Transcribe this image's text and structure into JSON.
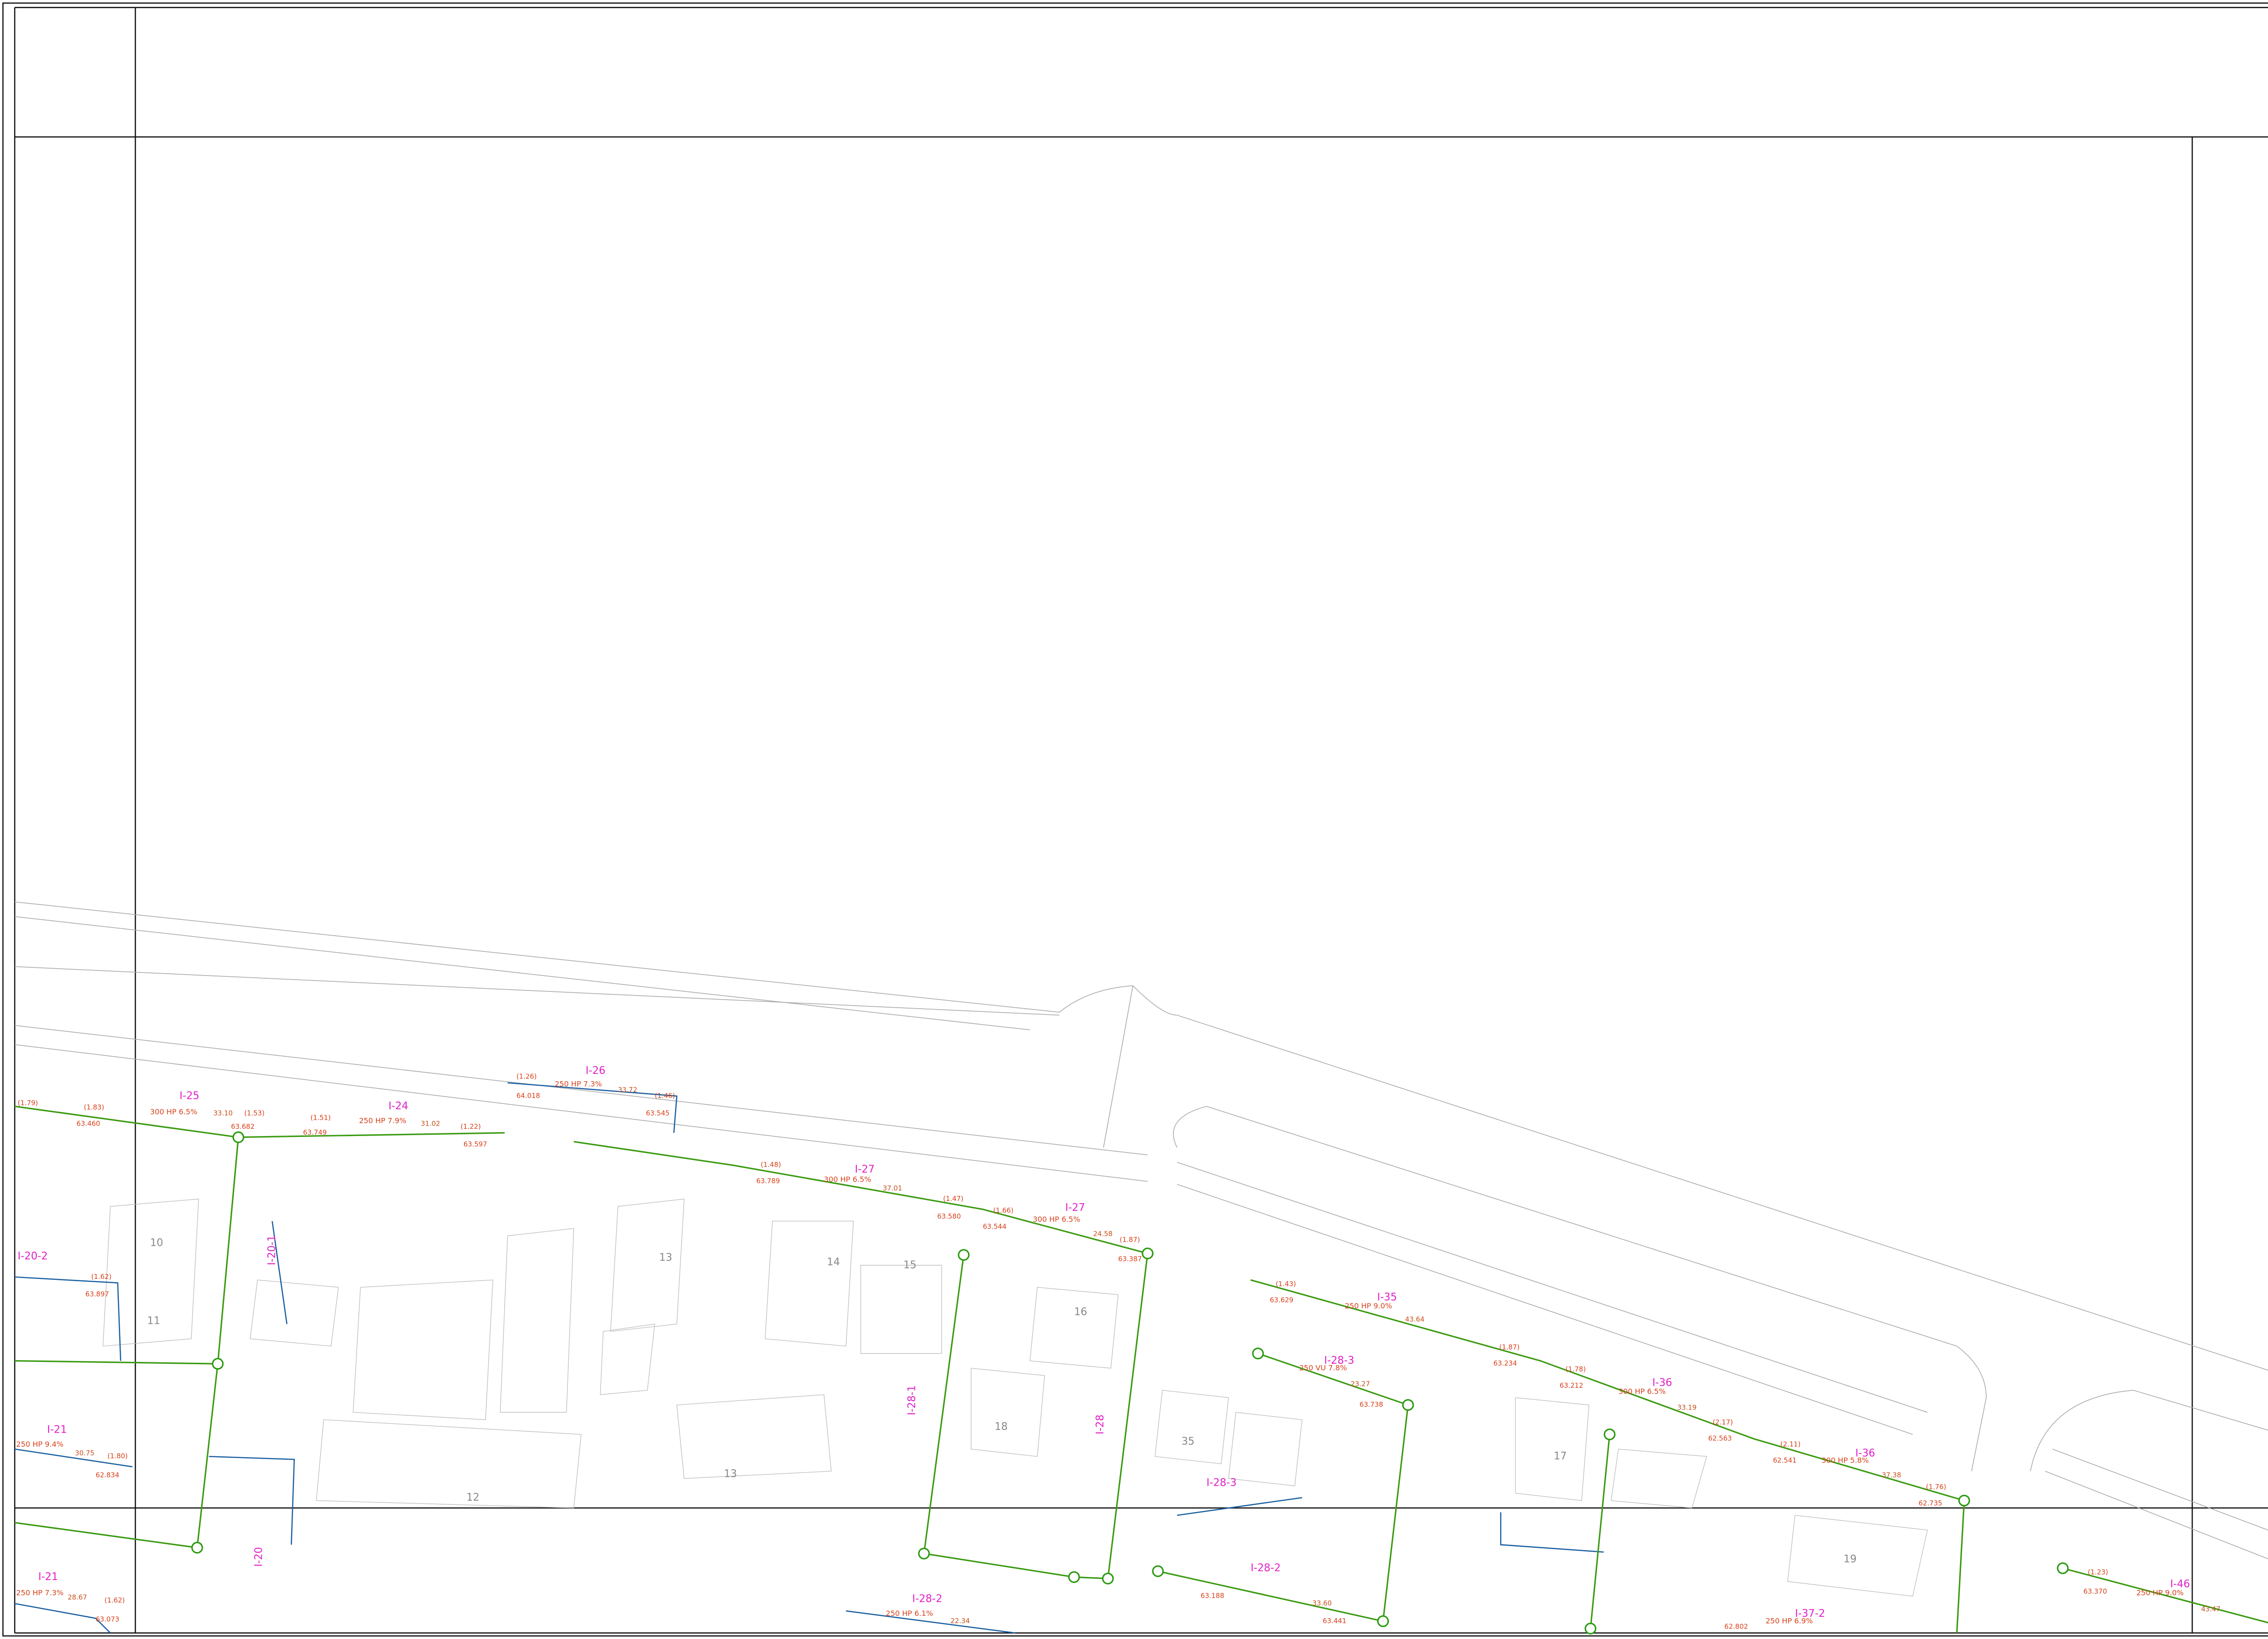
{
  "pipe_labels": [
    "I-26",
    "I-25",
    "I-24",
    "I-27",
    "I-27",
    "I-35",
    "I-28-3",
    "I-36",
    "I-36",
    "I-20-2",
    "I-20-1",
    "I-21",
    "I-21",
    "I-28",
    "I-28-1",
    "I-28-3",
    "I-28-2",
    "I-28-2",
    "I-20",
    "I-37-2",
    "I-46"
  ],
  "pipe_specs": [
    "300 HP 6.5%",
    "250 HP 7.9%",
    "250 HP 7.3%",
    "300 HP 6.5%",
    "300 HP 6.5%",
    "250 HP 9.0%",
    "300 HP 6.5%",
    "300 HP 5.8%",
    "250 VU 7.8%",
    "250 HP 9.4%",
    "250 HP 7.3%",
    "250 HP 6.1%",
    "250 HP 6.9%",
    "250 HP 9.0%"
  ],
  "elevations": [
    "63.460",
    "63.682",
    "63.749",
    "63.597",
    "64.018",
    "63.545",
    "63.789",
    "63.580",
    "63.544",
    "63.387",
    "63.629",
    "63.234",
    "63.212",
    "62.563",
    "62.541",
    "62.735",
    "63.370",
    "63.897",
    "62.834",
    "63.073",
    "63.738",
    "63.188",
    "63.441",
    "62.802"
  ],
  "depths": [
    "(1.79)",
    "(1.83)",
    "(1.53)",
    "(1.51)",
    "(1.22)",
    "(1.26)",
    "(1.46)",
    "(1.48)",
    "(1.47)",
    "(1.66)",
    "(1.87)",
    "(1.43)",
    "(1.87)",
    "(1.78)",
    "(2.17)",
    "(2.11)",
    "(1.76)",
    "(1.23)",
    "(1.62)",
    "(1.80)",
    "(1.62)"
  ],
  "lengths": [
    "33.10",
    "31.02",
    "33.72",
    "37.01",
    "24.58",
    "43.64",
    "33.19",
    "37.38",
    "30.75",
    "28.67",
    "43.47",
    "22.34",
    "23.27",
    "33.60"
  ],
  "lot_numbers": [
    "13",
    "14",
    "15",
    "16",
    "18",
    "12",
    "13",
    "35",
    "17",
    "19",
    "10",
    "11"
  ]
}
